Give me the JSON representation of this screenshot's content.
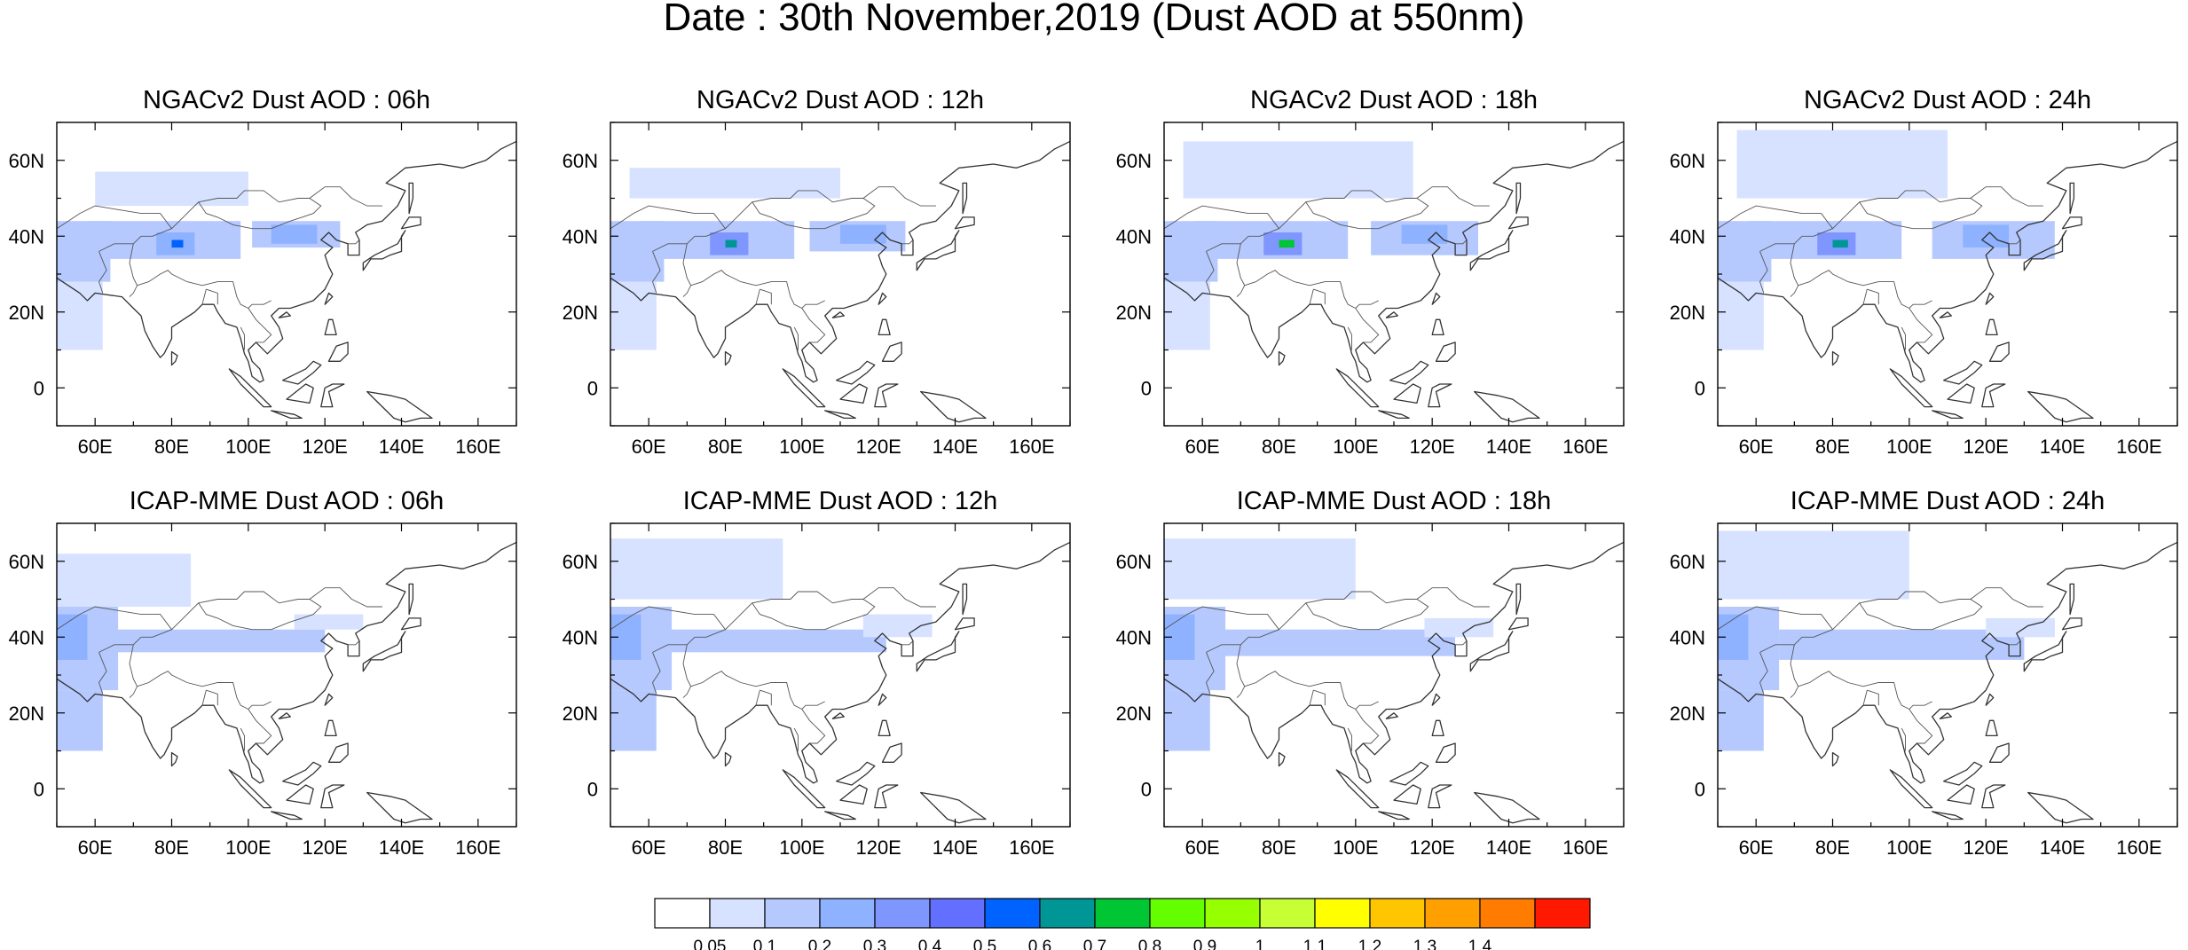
{
  "figure": {
    "title": "Date : 30th November,2019 (Dust AOD at 550nm)"
  },
  "map": {
    "lon_range": [
      50,
      170
    ],
    "lat_range": [
      -10,
      70
    ],
    "lon_ticks": [
      60,
      80,
      100,
      120,
      140,
      160
    ],
    "lat_ticks": [
      0,
      20,
      40,
      60
    ],
    "lon_tick_labels": [
      "60E",
      "80E",
      "100E",
      "120E",
      "140E",
      "160E"
    ],
    "lat_tick_labels": [
      "0",
      "20N",
      "40N",
      "60N"
    ]
  },
  "panels": [
    {
      "title": "NGACv2 Dust AOD : 06h",
      "model": "NGACv2",
      "hour": 6,
      "fields": [
        {
          "lon": [
            50,
            64
          ],
          "lat": [
            28,
            44
          ],
          "aod": 0.12
        },
        {
          "lon": [
            58,
            98
          ],
          "lat": [
            34,
            44
          ],
          "aod": 0.12
        },
        {
          "lon": [
            76,
            86
          ],
          "lat": [
            35,
            41
          ],
          "aod": 0.25
        },
        {
          "lon": [
            80,
            83
          ],
          "lat": [
            37,
            39
          ],
          "aod": 0.55
        },
        {
          "lon": [
            101,
            124
          ],
          "lat": [
            37,
            44
          ],
          "aod": 0.12
        },
        {
          "lon": [
            106,
            118
          ],
          "lat": [
            38,
            43
          ],
          "aod": 0.2
        },
        {
          "lon": [
            50,
            62
          ],
          "lat": [
            10,
            28
          ],
          "aod": 0.07
        },
        {
          "lon": [
            60,
            100
          ],
          "lat": [
            48,
            57
          ],
          "aod": 0.06
        }
      ]
    },
    {
      "title": "NGACv2 Dust AOD : 12h",
      "model": "NGACv2",
      "hour": 12,
      "fields": [
        {
          "lon": [
            50,
            64
          ],
          "lat": [
            28,
            44
          ],
          "aod": 0.12
        },
        {
          "lon": [
            58,
            98
          ],
          "lat": [
            34,
            44
          ],
          "aod": 0.12
        },
        {
          "lon": [
            76,
            86
          ],
          "lat": [
            35,
            41
          ],
          "aod": 0.3
        },
        {
          "lon": [
            80,
            83
          ],
          "lat": [
            37,
            39
          ],
          "aod": 0.65
        },
        {
          "lon": [
            102,
            127
          ],
          "lat": [
            36,
            44
          ],
          "aod": 0.12
        },
        {
          "lon": [
            110,
            122
          ],
          "lat": [
            38,
            43
          ],
          "aod": 0.2
        },
        {
          "lon": [
            50,
            62
          ],
          "lat": [
            10,
            28
          ],
          "aod": 0.07
        },
        {
          "lon": [
            55,
            110
          ],
          "lat": [
            50,
            58
          ],
          "aod": 0.06
        }
      ]
    },
    {
      "title": "NGACv2 Dust AOD : 18h",
      "model": "NGACv2",
      "hour": 18,
      "fields": [
        {
          "lon": [
            50,
            64
          ],
          "lat": [
            28,
            44
          ],
          "aod": 0.12
        },
        {
          "lon": [
            58,
            98
          ],
          "lat": [
            34,
            44
          ],
          "aod": 0.12
        },
        {
          "lon": [
            76,
            86
          ],
          "lat": [
            35,
            41
          ],
          "aod": 0.3
        },
        {
          "lon": [
            80,
            84
          ],
          "lat": [
            37,
            39
          ],
          "aod": 0.75
        },
        {
          "lon": [
            104,
            132
          ],
          "lat": [
            35,
            44
          ],
          "aod": 0.12
        },
        {
          "lon": [
            112,
            124
          ],
          "lat": [
            38,
            43
          ],
          "aod": 0.2
        },
        {
          "lon": [
            50,
            62
          ],
          "lat": [
            10,
            28
          ],
          "aod": 0.07
        },
        {
          "lon": [
            55,
            115
          ],
          "lat": [
            50,
            65
          ],
          "aod": 0.06
        }
      ]
    },
    {
      "title": "NGACv2 Dust AOD : 24h",
      "model": "NGACv2",
      "hour": 24,
      "fields": [
        {
          "lon": [
            50,
            64
          ],
          "lat": [
            28,
            44
          ],
          "aod": 0.12
        },
        {
          "lon": [
            58,
            98
          ],
          "lat": [
            34,
            44
          ],
          "aod": 0.12
        },
        {
          "lon": [
            76,
            86
          ],
          "lat": [
            35,
            41
          ],
          "aod": 0.3
        },
        {
          "lon": [
            80,
            84
          ],
          "lat": [
            37,
            39
          ],
          "aod": 0.65
        },
        {
          "lon": [
            106,
            138
          ],
          "lat": [
            34,
            44
          ],
          "aod": 0.12
        },
        {
          "lon": [
            114,
            126
          ],
          "lat": [
            37,
            43
          ],
          "aod": 0.2
        },
        {
          "lon": [
            50,
            62
          ],
          "lat": [
            10,
            28
          ],
          "aod": 0.07
        },
        {
          "lon": [
            55,
            110
          ],
          "lat": [
            50,
            68
          ],
          "aod": 0.06
        }
      ]
    },
    {
      "title": "ICAP-MME Dust AOD : 06h",
      "model": "ICAP-MME",
      "hour": 6,
      "fields": [
        {
          "lon": [
            50,
            66
          ],
          "lat": [
            26,
            48
          ],
          "aod": 0.15
        },
        {
          "lon": [
            50,
            58
          ],
          "lat": [
            34,
            46
          ],
          "aod": 0.25
        },
        {
          "lon": [
            62,
            120
          ],
          "lat": [
            36,
            42
          ],
          "aod": 0.1
        },
        {
          "lon": [
            50,
            62
          ],
          "lat": [
            10,
            26
          ],
          "aod": 0.12
        },
        {
          "lon": [
            50,
            85
          ],
          "lat": [
            48,
            62
          ],
          "aod": 0.06
        },
        {
          "lon": [
            112,
            130
          ],
          "lat": [
            42,
            46
          ],
          "aod": 0.08
        }
      ]
    },
    {
      "title": "ICAP-MME Dust AOD : 12h",
      "model": "ICAP-MME",
      "hour": 12,
      "fields": [
        {
          "lon": [
            50,
            66
          ],
          "lat": [
            26,
            48
          ],
          "aod": 0.15
        },
        {
          "lon": [
            50,
            58
          ],
          "lat": [
            34,
            46
          ],
          "aod": 0.25
        },
        {
          "lon": [
            62,
            122
          ],
          "lat": [
            36,
            42
          ],
          "aod": 0.1
        },
        {
          "lon": [
            50,
            62
          ],
          "lat": [
            10,
            26
          ],
          "aod": 0.12
        },
        {
          "lon": [
            50,
            95
          ],
          "lat": [
            50,
            66
          ],
          "aod": 0.06
        },
        {
          "lon": [
            116,
            134
          ],
          "lat": [
            40,
            46
          ],
          "aod": 0.08
        }
      ]
    },
    {
      "title": "ICAP-MME Dust AOD : 18h",
      "model": "ICAP-MME",
      "hour": 18,
      "fields": [
        {
          "lon": [
            50,
            66
          ],
          "lat": [
            26,
            48
          ],
          "aod": 0.15
        },
        {
          "lon": [
            50,
            58
          ],
          "lat": [
            34,
            46
          ],
          "aod": 0.25
        },
        {
          "lon": [
            64,
            126
          ],
          "lat": [
            35,
            42
          ],
          "aod": 0.1
        },
        {
          "lon": [
            50,
            62
          ],
          "lat": [
            10,
            26
          ],
          "aod": 0.12
        },
        {
          "lon": [
            50,
            100
          ],
          "lat": [
            50,
            66
          ],
          "aod": 0.06
        },
        {
          "lon": [
            118,
            136
          ],
          "lat": [
            40,
            45
          ],
          "aod": 0.08
        }
      ]
    },
    {
      "title": "ICAP-MME Dust AOD : 24h",
      "model": "ICAP-MME",
      "hour": 24,
      "fields": [
        {
          "lon": [
            50,
            66
          ],
          "lat": [
            26,
            48
          ],
          "aod": 0.15
        },
        {
          "lon": [
            50,
            58
          ],
          "lat": [
            34,
            46
          ],
          "aod": 0.25
        },
        {
          "lon": [
            66,
            130
          ],
          "lat": [
            34,
            42
          ],
          "aod": 0.1
        },
        {
          "lon": [
            50,
            62
          ],
          "lat": [
            10,
            26
          ],
          "aod": 0.12
        },
        {
          "lon": [
            50,
            100
          ],
          "lat": [
            50,
            68
          ],
          "aod": 0.06
        },
        {
          "lon": [
            120,
            138
          ],
          "lat": [
            40,
            45
          ],
          "aod": 0.08
        }
      ]
    }
  ],
  "colorbar": {
    "labels": [
      "0.05",
      "0.1",
      "0.2",
      "0.3",
      "0.4",
      "0.5",
      "0.6",
      "0.7",
      "0.8",
      "0.9",
      "1",
      "1.1",
      "1.2",
      "1.3",
      "1.4"
    ],
    "thresholds": [
      0.05,
      0.1,
      0.2,
      0.3,
      0.4,
      0.5,
      0.6,
      0.7,
      0.8,
      0.9,
      1.0,
      1.1,
      1.2,
      1.3,
      1.4
    ],
    "colors": [
      "#ffffff",
      "#d6e2ff",
      "#b5c9ff",
      "#8eb2ff",
      "#7f96ff",
      "#6370ff",
      "#0063ff",
      "#009696",
      "#00c633",
      "#63ff00",
      "#96ff00",
      "#c6ff33",
      "#ffff00",
      "#ffc600",
      "#ffa000",
      "#ff7c00",
      "#ff1900"
    ]
  }
}
